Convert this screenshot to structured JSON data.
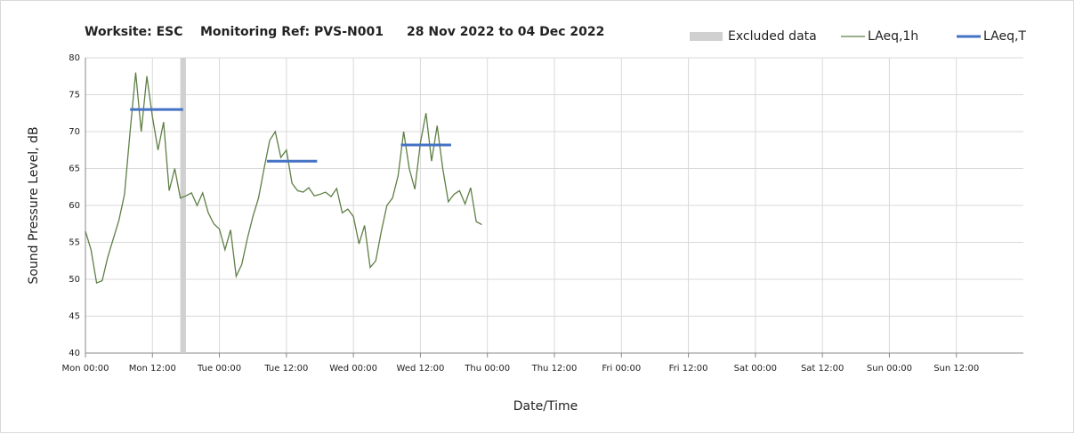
{
  "chart_data": {
    "type": "line",
    "title": [
      "Worksite: ESC",
      "Monitoring Ref: PVS-N001",
      "28 Nov 2022 to 04 Dec 2022"
    ],
    "xlabel": "Date/Time",
    "ylabel": "Sound Pressure Level, dB",
    "xlim": [
      0,
      168
    ],
    "xticks": [
      {
        "value": 0,
        "label": "Mon 00:00"
      },
      {
        "value": 12,
        "label": "Mon 12:00"
      },
      {
        "value": 24,
        "label": "Tue 00:00"
      },
      {
        "value": 36,
        "label": "Tue 12:00"
      },
      {
        "value": 48,
        "label": "Wed 00:00"
      },
      {
        "value": 60,
        "label": "Wed 12:00"
      },
      {
        "value": 72,
        "label": "Thu 00:00"
      },
      {
        "value": 84,
        "label": "Thu 12:00"
      },
      {
        "value": 96,
        "label": "Fri 00:00"
      },
      {
        "value": 108,
        "label": "Fri 12:00"
      },
      {
        "value": 120,
        "label": "Sat 00:00"
      },
      {
        "value": 132,
        "label": "Sat 12:00"
      },
      {
        "value": 144,
        "label": "Sun 00:00"
      },
      {
        "value": 156,
        "label": "Sun 12:00"
      }
    ],
    "ylim": [
      40,
      80
    ],
    "yticks": [
      40,
      45,
      50,
      55,
      60,
      65,
      70,
      75,
      80
    ],
    "grid": true,
    "legend": "top-right",
    "excluded": {
      "name": "Excluded data",
      "color": "#d0d0d0",
      "start": 17,
      "end": 18
    },
    "series": [
      {
        "name": "LAeq,1h",
        "color": "#5e7f45",
        "x": [
          0,
          1,
          2,
          3,
          4,
          5,
          6,
          7,
          8,
          9,
          10,
          11,
          12,
          13,
          14,
          15,
          16,
          17,
          18,
          19,
          20,
          21,
          22,
          23,
          24,
          25,
          26,
          27,
          28,
          29,
          30,
          31,
          32,
          33,
          34,
          35,
          36,
          37,
          38,
          39,
          40,
          41,
          42,
          43,
          44,
          45,
          46,
          47,
          48,
          49,
          50,
          51,
          52,
          53,
          54,
          55,
          56,
          57,
          58,
          59,
          60,
          61,
          62,
          63,
          64,
          65,
          66,
          67,
          68,
          69,
          70,
          71
        ],
        "values": [
          56.5,
          54,
          49.5,
          49.8,
          53,
          55.5,
          58,
          61.5,
          70,
          78,
          70,
          77.5,
          72,
          67.5,
          71.3,
          62,
          65,
          61,
          61.3,
          61.7,
          60,
          61.7,
          59,
          57.5,
          56.8,
          54,
          56.7,
          50.4,
          52,
          55.5,
          58.5,
          61,
          65,
          68.8,
          70,
          66.5,
          67.5,
          63,
          62,
          61.8,
          62.4,
          61.3,
          61.5,
          61.8,
          61.2,
          62.3,
          59,
          59.5,
          58.5,
          54.8,
          57.3,
          51.6,
          52.5,
          56.5,
          60,
          61,
          64,
          70,
          65,
          62.2,
          68.5,
          72.5,
          66,
          70.8,
          65,
          60.5,
          61.5,
          62,
          60.2,
          62.4,
          57.8,
          57.4
        ]
      },
      {
        "name": "LAeq,T",
        "color": "#4472c4",
        "segments": [
          {
            "start": 8,
            "end": 17.5,
            "value": 73
          },
          {
            "start": 32.5,
            "end": 41.5,
            "value": 66
          },
          {
            "start": 56.5,
            "end": 65.5,
            "value": 68.2
          }
        ]
      }
    ]
  }
}
